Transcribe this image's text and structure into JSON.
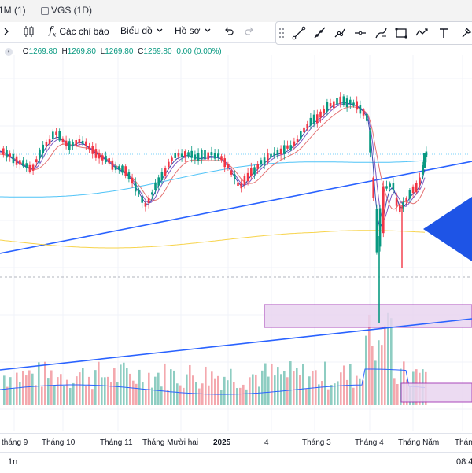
{
  "tabs": [
    {
      "label": "1M (1)"
    },
    {
      "label": "VGS (1D)"
    }
  ],
  "toolbar": {
    "indicators_label": "Các chỉ báo",
    "chart_type_label": "Biểu đồ",
    "profile_label": "Hồ sơ"
  },
  "legend": {
    "o_label": "O",
    "o": "1269.80",
    "h_label": "H",
    "h": "1269.80",
    "l_label": "L",
    "l": "1269.80",
    "c_label": "C",
    "c": "1269.80",
    "change": "0.00 (0.00%)"
  },
  "xaxis": {
    "labels": [
      "tháng 9",
      "Tháng 10",
      "Tháng 11",
      "Tháng Mười hai",
      "2025",
      "4",
      "Tháng 3",
      "Tháng 4",
      "Tháng Năm",
      "Tháng"
    ]
  },
  "bottom": {
    "interval": "1n",
    "time": "08:4"
  },
  "colors": {
    "up": "#089981",
    "down": "#f23645",
    "trendline": "#2962ff",
    "zone_fill": "#e9d5f0",
    "zone_border": "#9c27b0",
    "ma_yellow": "#f7d34a",
    "ma_purple": "#7e57c2",
    "ma_red": "#e57373",
    "ma_teal": "#4fc3f7"
  },
  "chart_data": {
    "type": "candlestick",
    "last_price": 1269.8
  }
}
